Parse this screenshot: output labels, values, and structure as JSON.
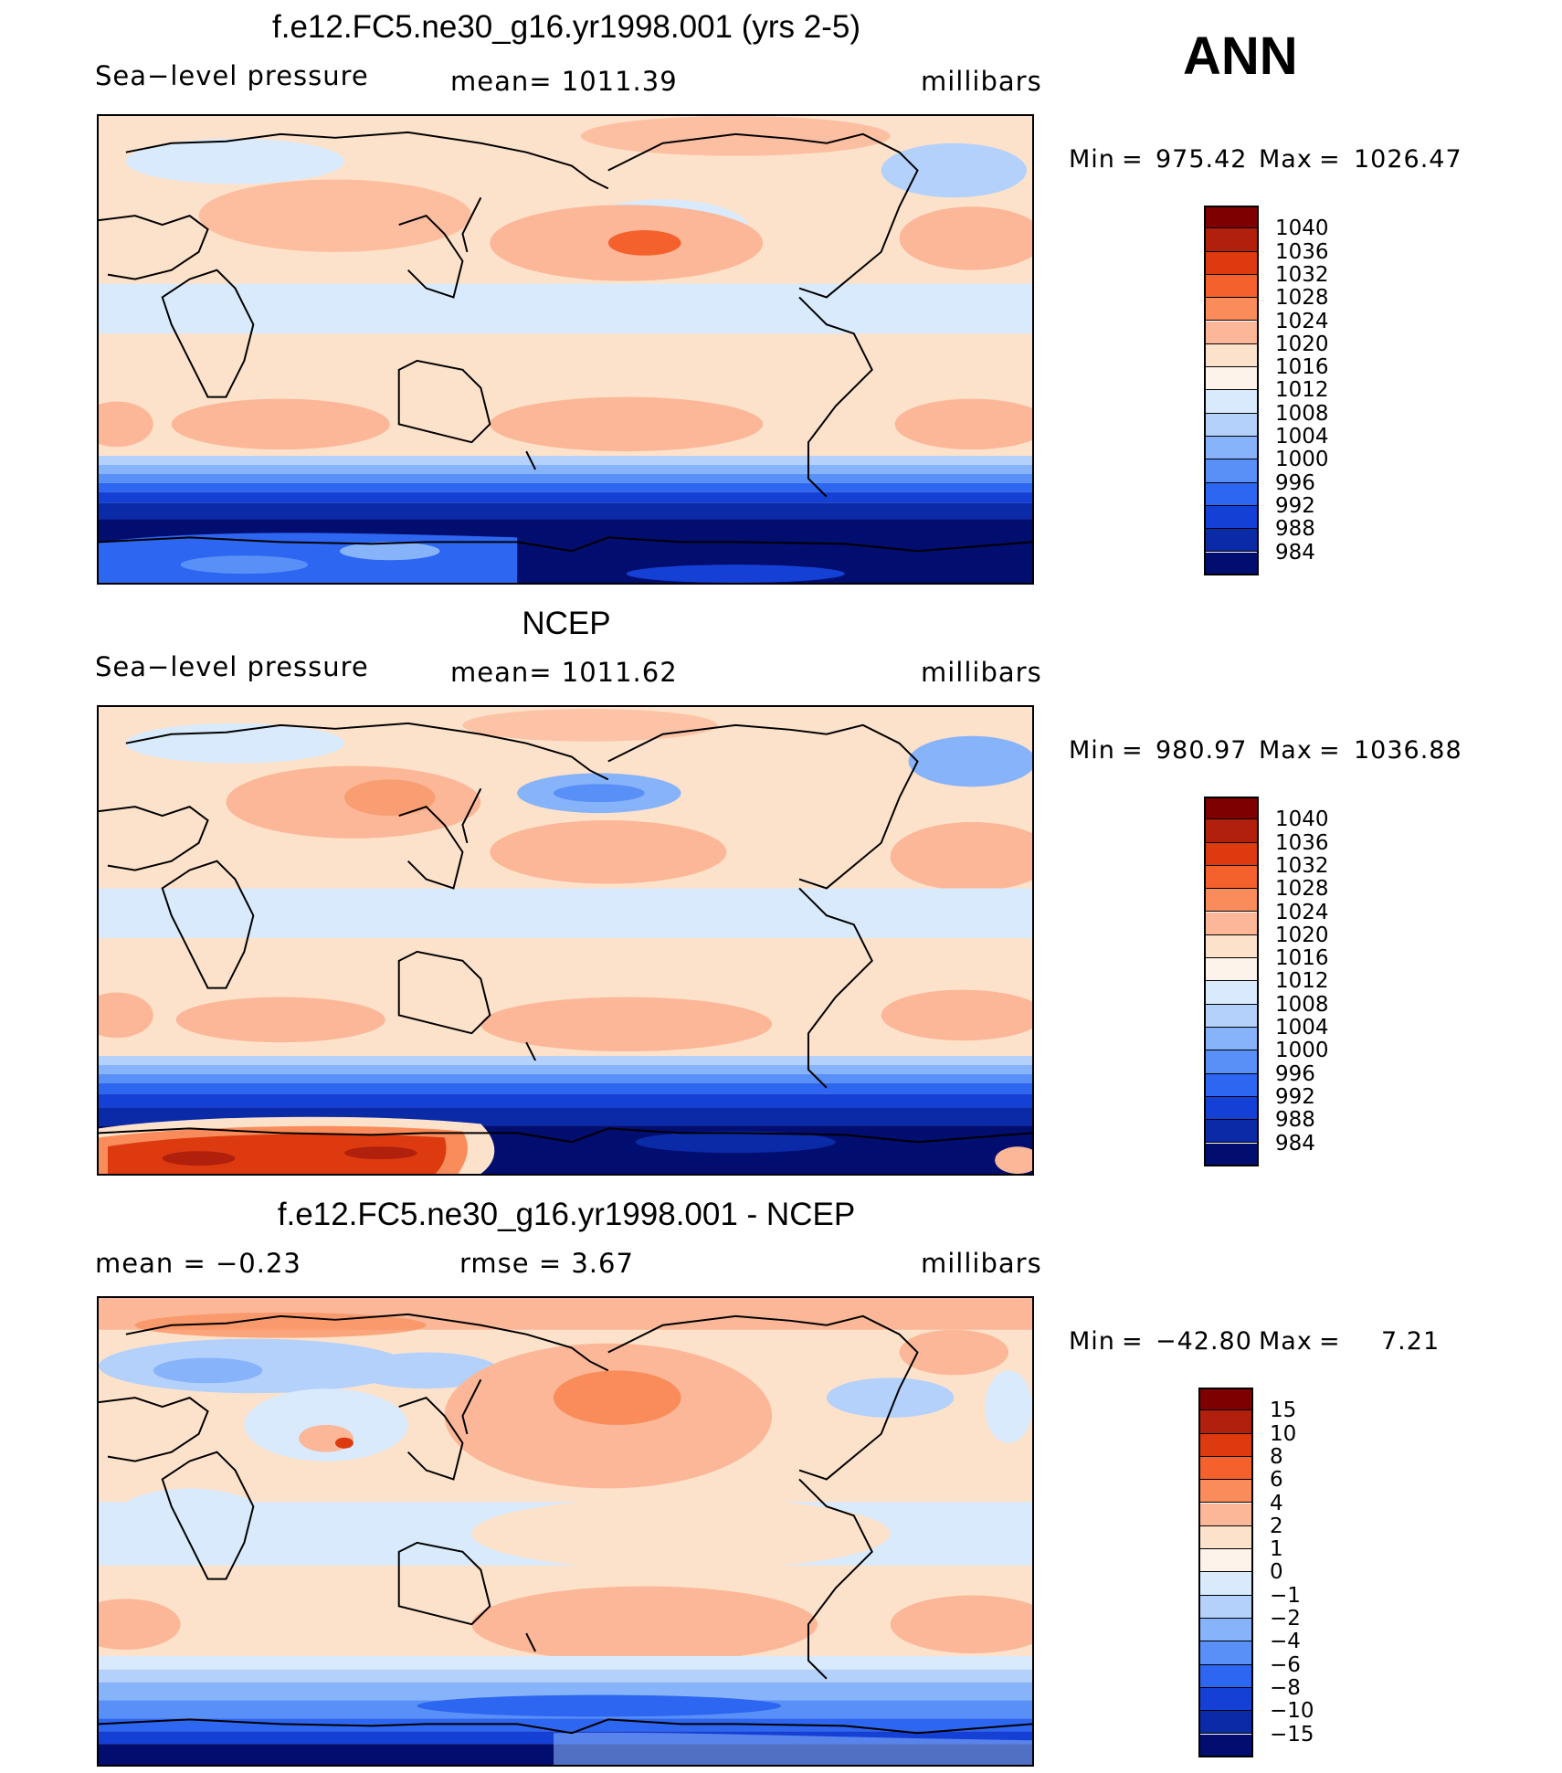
{
  "season": "ANN",
  "panels": [
    {
      "id": "model",
      "title": "f.e12.FC5.ne30_g16.yr1998.001 (yrs 2-5)",
      "left_label": "Sea−level pressure",
      "center_label": "mean=  1011.39",
      "units": "millibars",
      "min_label": "Min",
      "min_value": "975.42",
      "max_label": "Max",
      "max_value": "1026.47",
      "colorbar": {
        "levels": [
          "1040",
          "1036",
          "1032",
          "1028",
          "1024",
          "1020",
          "1016",
          "1012",
          "1008",
          "1004",
          "1000",
          "996",
          "992",
          "988",
          "984"
        ],
        "colors": [
          "#7f0000",
          "#b1200c",
          "#dd3a10",
          "#f4612d",
          "#f98c5a",
          "#fbb797",
          "#fde2cb",
          "#fdf3ea",
          "#d8eafc",
          "#b4d1fc",
          "#86b3fa",
          "#5890f7",
          "#2d66f0",
          "#1540d6",
          "#0a2aa8",
          "#020d70"
        ]
      }
    },
    {
      "id": "obs",
      "title": "NCEP",
      "left_label": "Sea−level pressure",
      "center_label": "mean=  1011.62",
      "units": "millibars",
      "min_label": "Min",
      "min_value": "980.97",
      "max_label": "Max",
      "max_value": "1036.88",
      "colorbar": {
        "levels": [
          "1040",
          "1036",
          "1032",
          "1028",
          "1024",
          "1020",
          "1016",
          "1012",
          "1008",
          "1004",
          "1000",
          "996",
          "992",
          "988",
          "984"
        ],
        "colors": [
          "#7f0000",
          "#b1200c",
          "#dd3a10",
          "#f4612d",
          "#f98c5a",
          "#fbb797",
          "#fde2cb",
          "#fdf3ea",
          "#d8eafc",
          "#b4d1fc",
          "#86b3fa",
          "#5890f7",
          "#2d66f0",
          "#1540d6",
          "#0a2aa8",
          "#020d70"
        ]
      }
    },
    {
      "id": "diff",
      "title": "f.e12.FC5.ne30_g16.yr1998.001 - NCEP",
      "left_label": "mean =    −0.23",
      "center_label": "rmse =      3.67",
      "units": "millibars",
      "min_label": "Min",
      "min_value": "−42.80",
      "max_label": "Max",
      "max_value": "7.21",
      "colorbar": {
        "levels": [
          "15",
          "10",
          "8",
          "6",
          "4",
          "2",
          "1",
          "0",
          "−1",
          "−2",
          "−4",
          "−6",
          "−8",
          "−10",
          "−15"
        ],
        "colors": [
          "#7f0000",
          "#b1200c",
          "#dd3a10",
          "#f4612d",
          "#f98c5a",
          "#fbb797",
          "#fde2cb",
          "#fdf3ea",
          "#d8eafc",
          "#b4d1fc",
          "#86b3fa",
          "#5890f7",
          "#2d66f0",
          "#1540d6",
          "#0a2aa8",
          "#020d70"
        ]
      }
    }
  ]
}
